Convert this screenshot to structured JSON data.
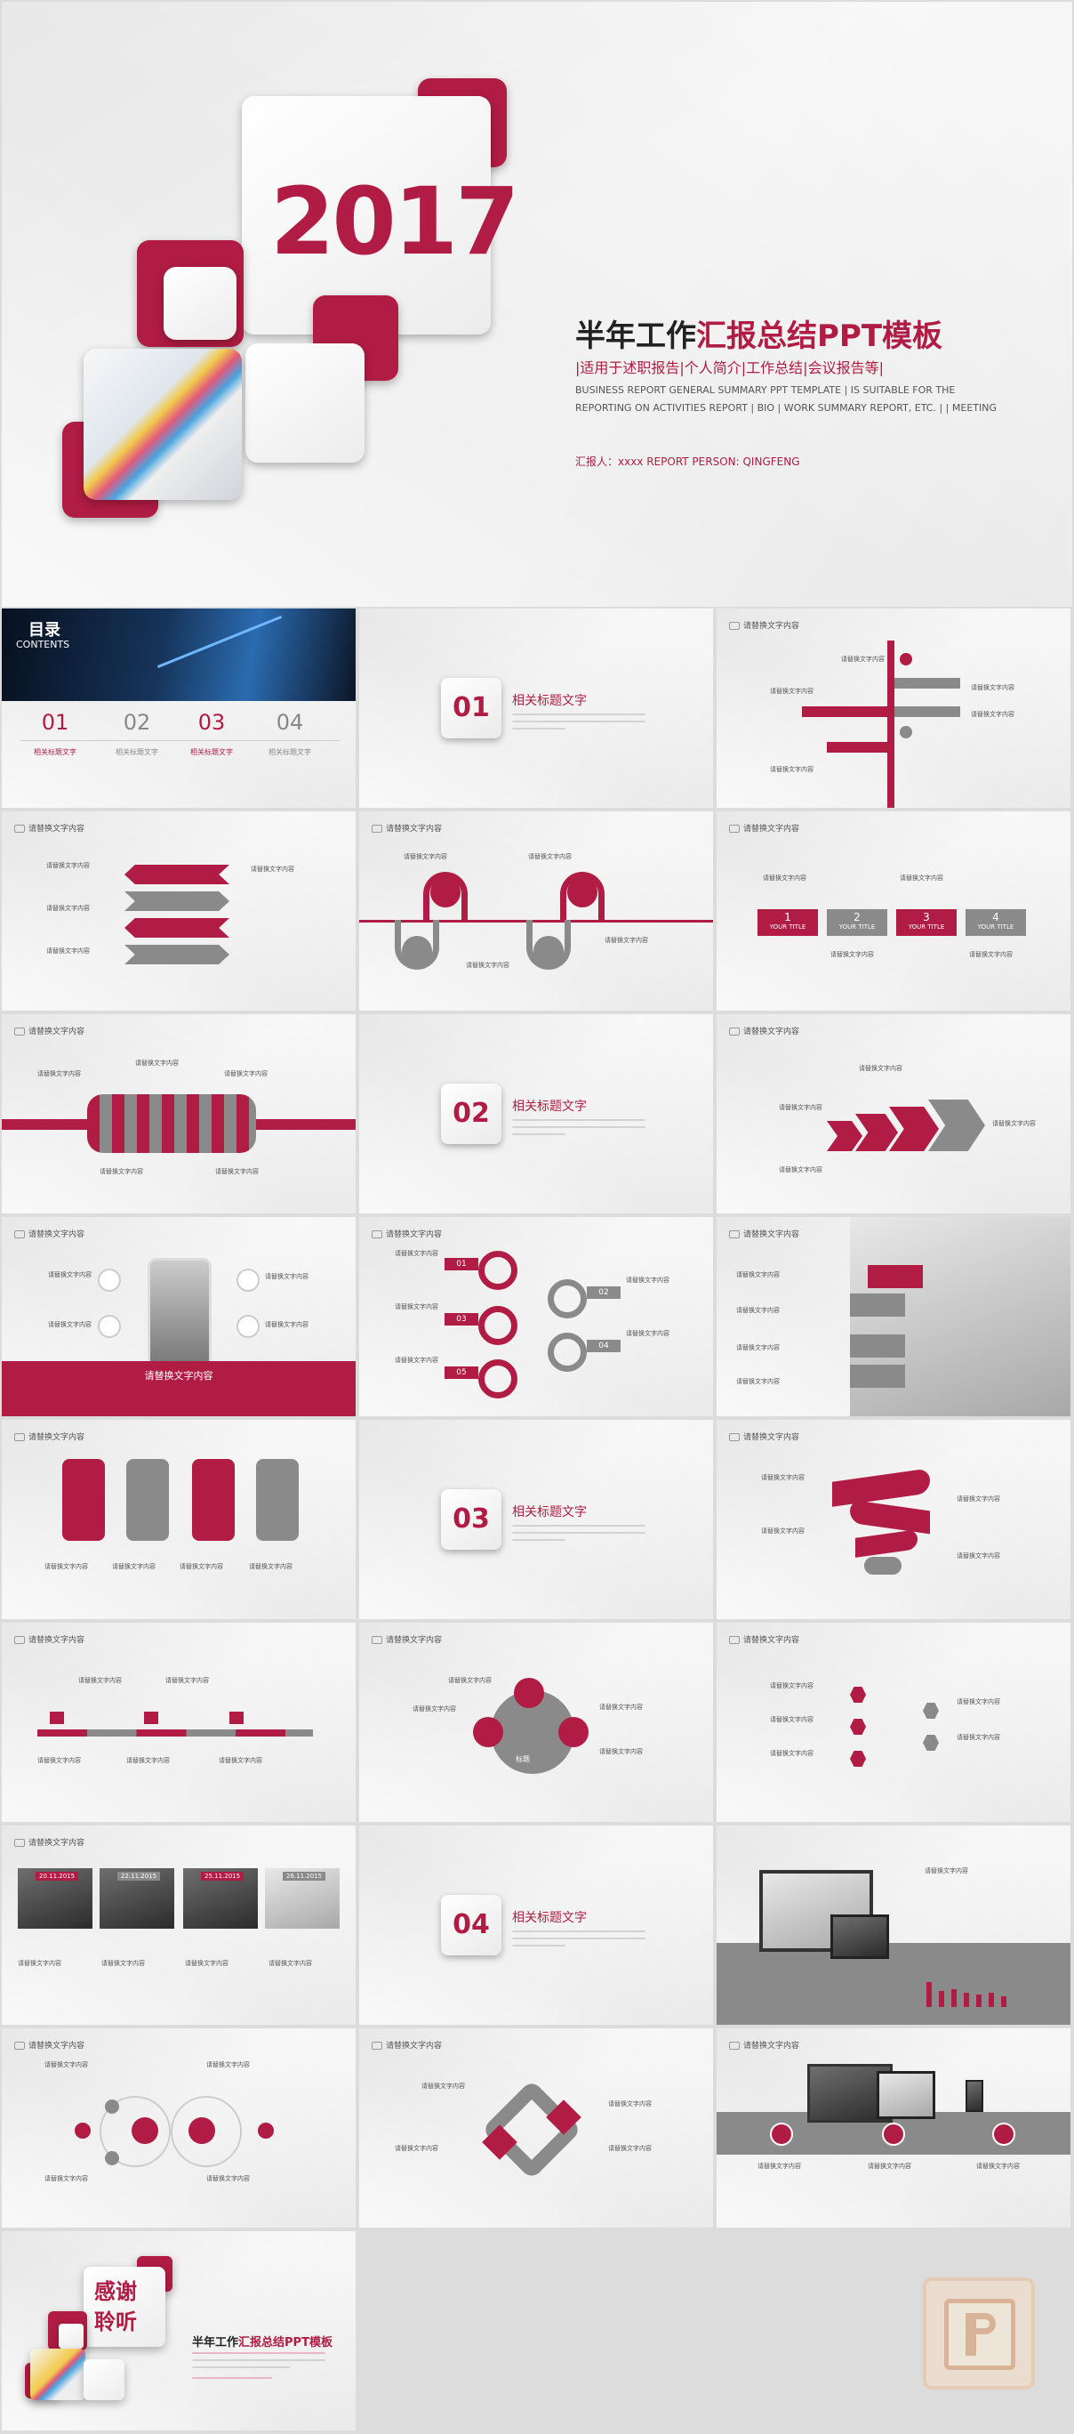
{
  "cover": {
    "year": "2017",
    "title_black": "半年工作",
    "title_red": "汇报总结PPT模板",
    "subtitle_cn": "|适用于述职报告|个人简介|工作总结|会议报告等|",
    "subtitle_en_line1": "BUSINESS REPORT GENERAL SUMMARY PPT TEMPLATE | IS SUITABLE FOR THE",
    "subtitle_en_line2": "REPORTING ON ACTIVITIES  REPORT | BIO | WORK SUMMARY REPORT, ETC. | | MEETING",
    "reporter": "汇报人：xxxx  REPORT PERSON: QINGFENG"
  },
  "common": {
    "slide_header": "请替换文字内容",
    "section_title": "相关标题文字",
    "generic_text": "请替换文字内容",
    "your_title": "YOUR TITLE"
  },
  "contents": {
    "title_cn": "目录",
    "title_en": "CONTENTS",
    "items": [
      {
        "num": "01",
        "label": "相关标题文字"
      },
      {
        "num": "02",
        "label": "相关标题文字"
      },
      {
        "num": "03",
        "label": "相关标题文字"
      },
      {
        "num": "04",
        "label": "相关标题文字"
      }
    ]
  },
  "sections": [
    "01",
    "02",
    "03",
    "04"
  ],
  "steps": [
    "1",
    "2",
    "3",
    "4"
  ],
  "numbered": [
    "01",
    "02",
    "03",
    "04",
    "05"
  ],
  "tiny_words": {
    "on": "on",
    "title": "TITLE",
    "center": "标题",
    "mid": "标题"
  },
  "banner_text": "请替换文字内容",
  "dates": [
    "20.11.2015",
    "22.11.2015",
    "25.11.2015",
    "26.11.2015"
  ],
  "thanks": {
    "line1": "感谢",
    "line2": "聆听",
    "title_black": "半年工作",
    "title_red": "汇报总结PPT模板"
  },
  "colors": {
    "accent": "#b01c43",
    "grey": "#8a8a8a"
  }
}
